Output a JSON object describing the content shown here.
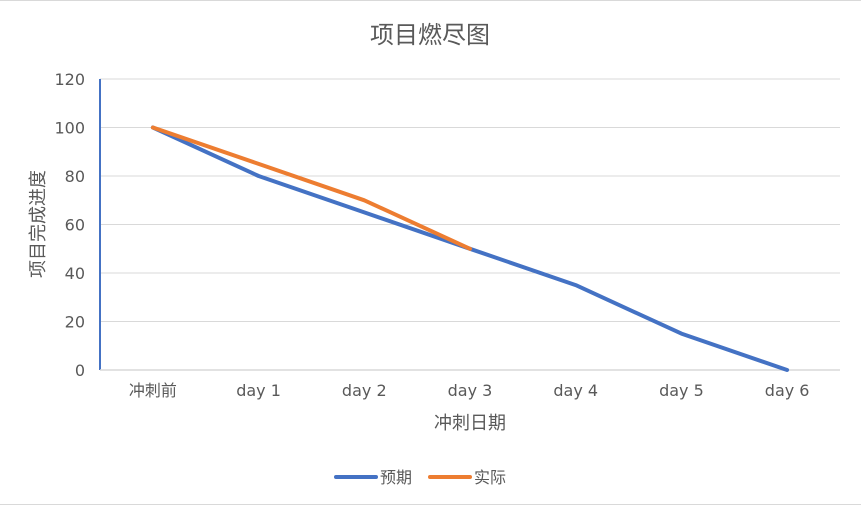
{
  "chart_data": {
    "type": "line",
    "title": "项目燃尽图",
    "xlabel": "冲刺日期",
    "ylabel": "项目完成进度",
    "categories": [
      "冲刺前",
      "day 1",
      "day 2",
      "day 3",
      "day 4",
      "day 5",
      "day 6"
    ],
    "ylim": [
      0,
      120
    ],
    "yticks": [
      0,
      20,
      40,
      60,
      80,
      100,
      120
    ],
    "grid": true,
    "legend_position": "bottom",
    "series": [
      {
        "name": "预期",
        "color": "#4472C4",
        "values": [
          100,
          80,
          65,
          50,
          35,
          15,
          0
        ]
      },
      {
        "name": "实际",
        "color": "#ED7D31",
        "values": [
          100,
          85,
          70,
          50,
          null,
          null,
          null
        ]
      }
    ]
  }
}
